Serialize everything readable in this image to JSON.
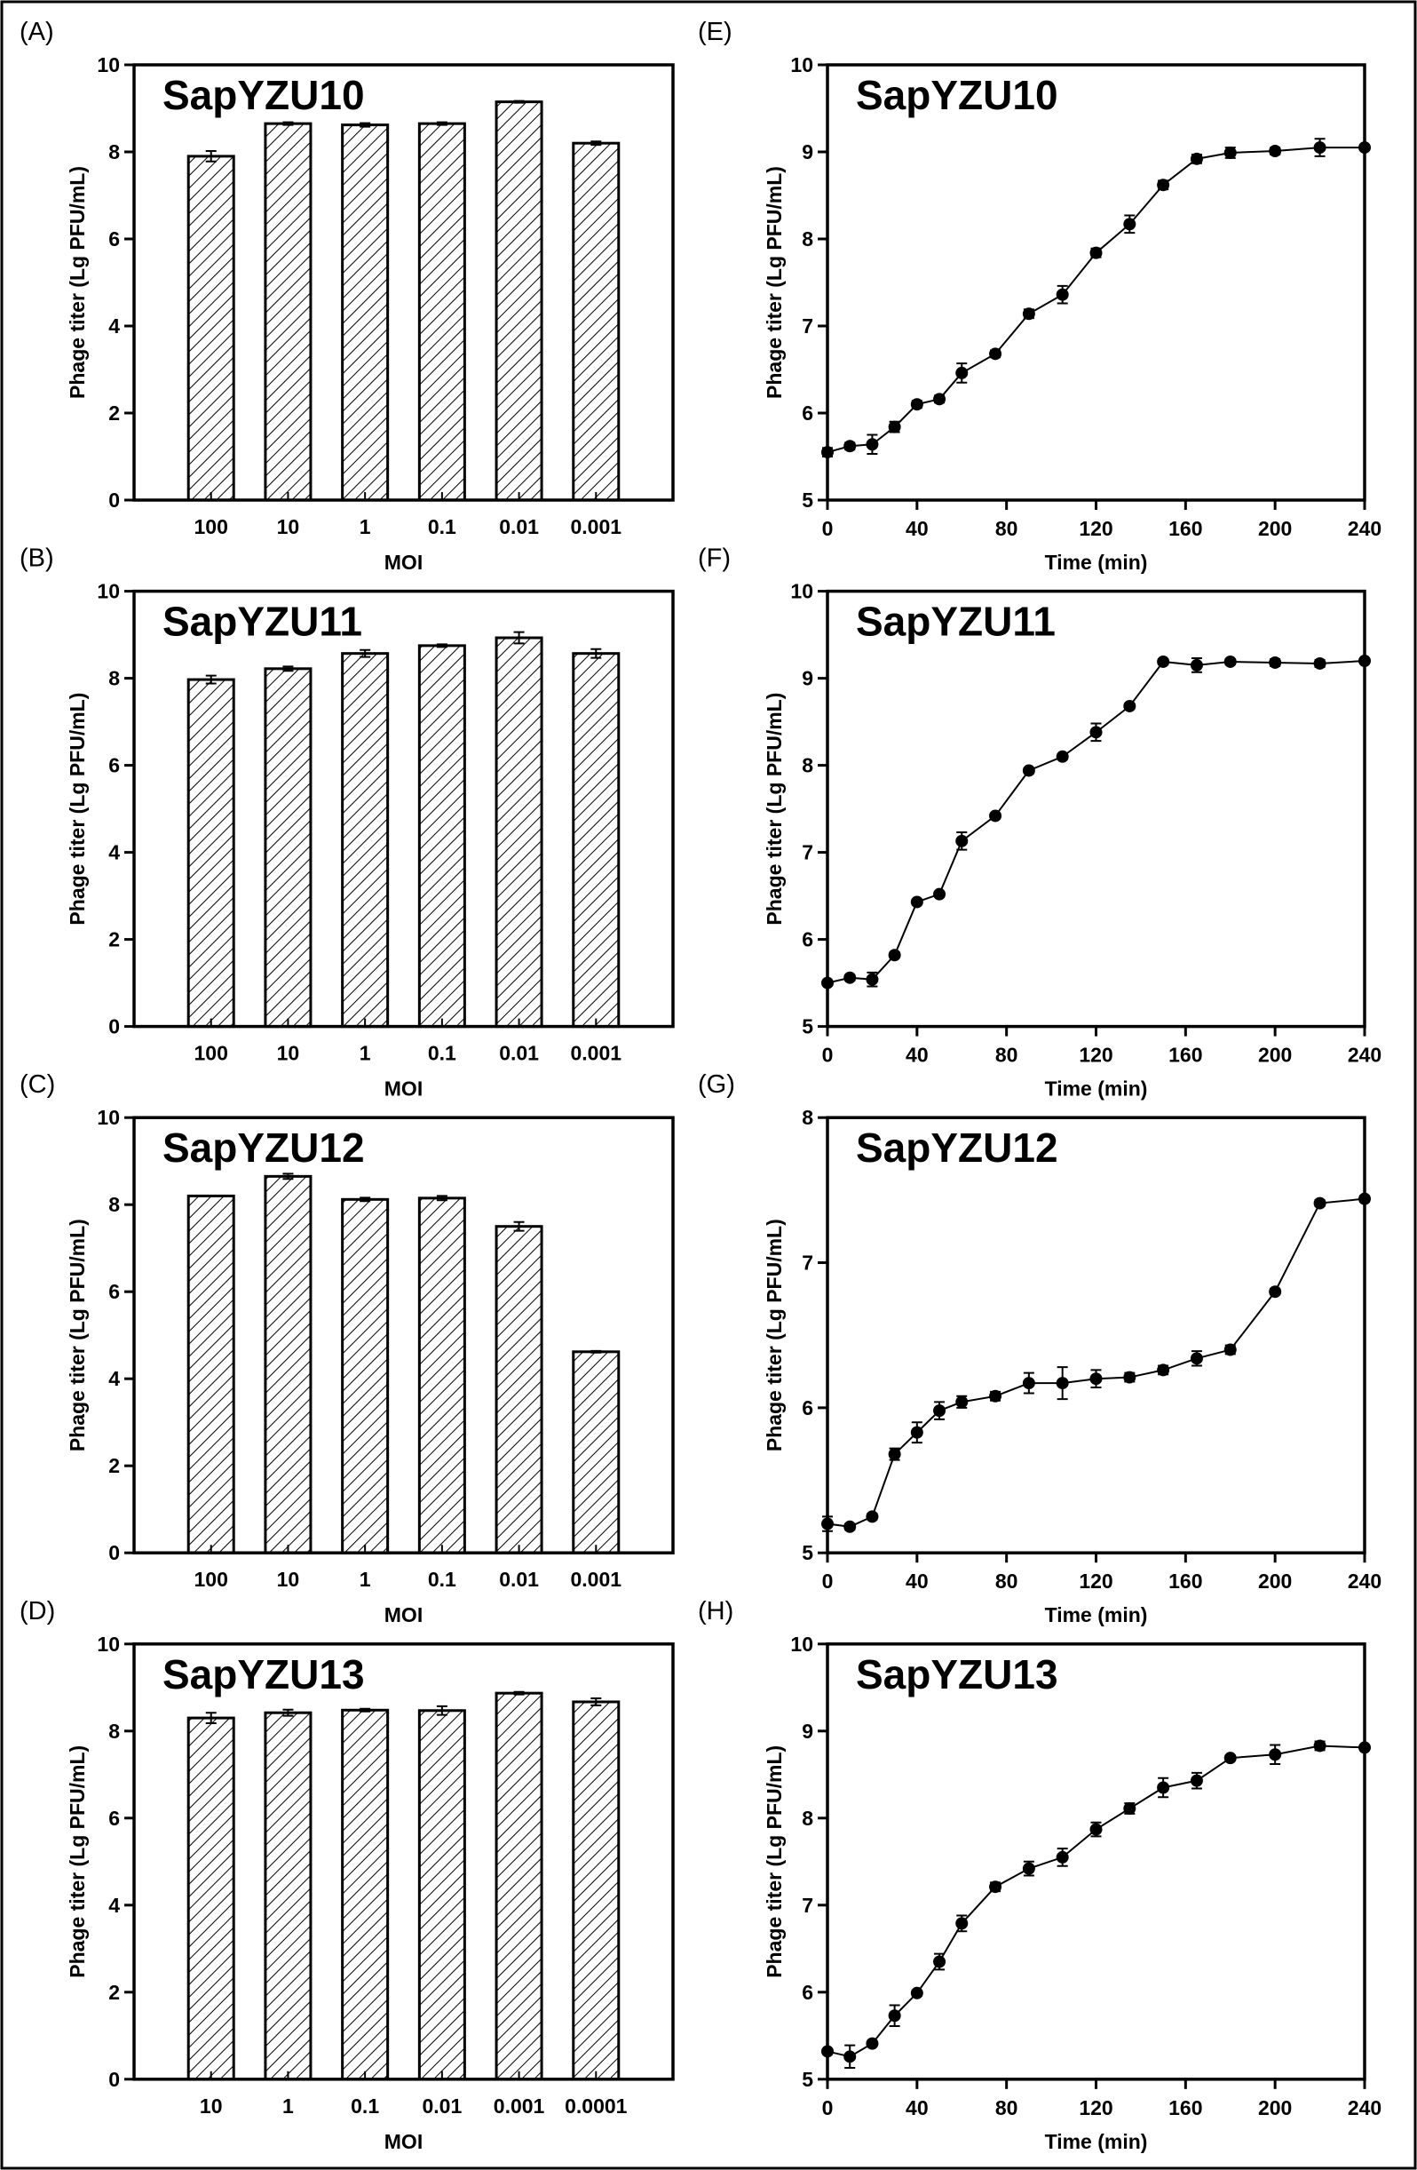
{
  "chart_data": [
    {
      "panel": "(A)",
      "type": "bar",
      "title": "SapYZU10",
      "xlabel": "MOI",
      "ylabel": "Phage titer (Lg PFU/mL)",
      "ylim": [
        0,
        10
      ],
      "yticks": [
        "0",
        "2",
        "4",
        "6",
        "8",
        "10"
      ],
      "categories": [
        "100",
        "10",
        "1",
        "0.1",
        "0.01",
        "0.001"
      ],
      "values": [
        7.9,
        8.65,
        8.62,
        8.65,
        9.15,
        8.2
      ],
      "errors": [
        0.12,
        0.03,
        0.04,
        0.03,
        0.02,
        0.04
      ],
      "pattern": "diagonal-hatch"
    },
    {
      "panel": "(B)",
      "type": "bar",
      "title": "SapYZU11",
      "xlabel": "MOI",
      "ylabel": "Phage titer (Lg PFU/mL)",
      "ylim": [
        0,
        10
      ],
      "yticks": [
        "0",
        "2",
        "4",
        "6",
        "8",
        "10"
      ],
      "categories": [
        "100",
        "10",
        "1",
        "0.1",
        "0.01",
        "0.001"
      ],
      "values": [
        7.97,
        8.22,
        8.57,
        8.75,
        8.93,
        8.57
      ],
      "errors": [
        0.09,
        0.05,
        0.08,
        0.03,
        0.13,
        0.1
      ],
      "pattern": "diagonal-hatch"
    },
    {
      "panel": "(C)",
      "type": "bar",
      "title": "SapYZU12",
      "xlabel": "MOI",
      "ylabel": "Phage titer (Lg PFU/mL)",
      "ylim": [
        0,
        10
      ],
      "yticks": [
        "0",
        "2",
        "4",
        "6",
        "8",
        "10"
      ],
      "categories": [
        "100",
        "10",
        "1",
        "0.1",
        "0.01",
        "0.001"
      ],
      "values": [
        8.2,
        8.65,
        8.12,
        8.15,
        7.5,
        4.62
      ],
      "errors": [
        0,
        0.06,
        0.04,
        0.05,
        0.1,
        0.02
      ],
      "pattern": "diagonal-hatch"
    },
    {
      "panel": "(D)",
      "type": "bar",
      "title": "SapYZU13",
      "xlabel": "MOI",
      "ylabel": "Phage titer (Lg PFU/mL)",
      "ylim": [
        0,
        10
      ],
      "yticks": [
        "0",
        "2",
        "4",
        "6",
        "8",
        "10"
      ],
      "categories": [
        "10",
        "1",
        "0.1",
        "0.01",
        "0.001",
        "0.0001"
      ],
      "values": [
        8.3,
        8.42,
        8.48,
        8.47,
        8.87,
        8.67
      ],
      "errors": [
        0.12,
        0.07,
        0.03,
        0.1,
        0.03,
        0.08
      ],
      "pattern": "diagonal-hatch"
    },
    {
      "panel": "(E)",
      "type": "line",
      "title": "SapYZU10",
      "xlabel": "Time (min)",
      "ylabel": "Phage titer (Lg PFU/mL)",
      "xlim": [
        0,
        240
      ],
      "ylim": [
        5,
        10
      ],
      "xticks": [
        "0",
        "40",
        "80",
        "120",
        "160",
        "200",
        "240"
      ],
      "yticks": [
        "5",
        "6",
        "7",
        "8",
        "9",
        "10"
      ],
      "x": [
        0,
        10,
        20,
        30,
        40,
        50,
        60,
        75,
        90,
        105,
        120,
        135,
        150,
        165,
        180,
        200,
        220,
        240
      ],
      "y": [
        5.55,
        5.62,
        5.64,
        5.84,
        6.1,
        6.16,
        6.46,
        6.68,
        7.14,
        7.36,
        7.84,
        8.17,
        8.62,
        8.92,
        8.99,
        9.01,
        9.05,
        9.05
      ],
      "errors": [
        0.05,
        0.04,
        0.11,
        0.06,
        0.04,
        0.04,
        0.11,
        0.04,
        0.05,
        0.1,
        0.05,
        0.1,
        0.05,
        0.05,
        0.06,
        0.04,
        0.1,
        0.03
      ]
    },
    {
      "panel": "(F)",
      "type": "line",
      "title": "SapYZU11",
      "xlabel": "Time (min)",
      "ylabel": "Phage titer (Lg PFU/mL)",
      "xlim": [
        0,
        240
      ],
      "ylim": [
        5,
        10
      ],
      "xticks": [
        "0",
        "40",
        "80",
        "120",
        "160",
        "200",
        "240"
      ],
      "yticks": [
        "5",
        "6",
        "7",
        "8",
        "9",
        "10"
      ],
      "x": [
        0,
        10,
        20,
        30,
        40,
        50,
        60,
        75,
        90,
        105,
        120,
        135,
        150,
        165,
        180,
        200,
        220,
        240
      ],
      "y": [
        5.5,
        5.56,
        5.54,
        5.82,
        6.43,
        6.52,
        7.13,
        7.42,
        7.94,
        8.1,
        8.38,
        8.68,
        9.19,
        9.15,
        9.19,
        9.18,
        9.17,
        9.2
      ],
      "errors": [
        0.03,
        0.03,
        0.08,
        0.03,
        0.03,
        0.03,
        0.1,
        0.03,
        0.03,
        0.03,
        0.1,
        0.03,
        0.03,
        0.08,
        0.03,
        0.04,
        0.04,
        0.03
      ]
    },
    {
      "panel": "(G)",
      "type": "line",
      "title": "SapYZU12",
      "xlabel": "Time (min)",
      "ylabel": "Phage titer (Lg PFU/mL)",
      "xlim": [
        0,
        240
      ],
      "ylim": [
        5,
        8
      ],
      "xticks": [
        "0",
        "40",
        "80",
        "120",
        "160",
        "200",
        "240"
      ],
      "yticks": [
        "5",
        "6",
        "7",
        "8"
      ],
      "x": [
        0,
        10,
        20,
        30,
        40,
        50,
        60,
        75,
        90,
        105,
        120,
        135,
        150,
        165,
        180,
        200,
        220,
        240
      ],
      "y": [
        5.2,
        5.18,
        5.25,
        5.68,
        5.83,
        5.98,
        6.04,
        6.08,
        6.17,
        6.17,
        6.2,
        6.21,
        6.26,
        6.34,
        6.4,
        6.8,
        7.41,
        7.44
      ],
      "errors": [
        0.05,
        0.02,
        0.02,
        0.04,
        0.07,
        0.06,
        0.04,
        0.03,
        0.07,
        0.11,
        0.06,
        0.03,
        0.03,
        0.05,
        0.03,
        0.02,
        0.02,
        0.02
      ]
    },
    {
      "panel": "(H)",
      "type": "line",
      "title": "SapYZU13",
      "xlabel": "Time (min)",
      "ylabel": "Phage titer (Lg PFU/mL)",
      "xlim": [
        0,
        240
      ],
      "ylim": [
        5,
        10
      ],
      "xticks": [
        "0",
        "40",
        "80",
        "120",
        "160",
        "200",
        "240"
      ],
      "yticks": [
        "5",
        "6",
        "7",
        "8",
        "9",
        "10"
      ],
      "x": [
        0,
        10,
        20,
        30,
        40,
        50,
        60,
        75,
        90,
        105,
        120,
        135,
        150,
        165,
        180,
        200,
        220,
        240
      ],
      "y": [
        5.32,
        5.26,
        5.41,
        5.73,
        5.99,
        6.35,
        6.79,
        7.21,
        7.42,
        7.55,
        7.87,
        8.11,
        8.35,
        8.43,
        8.69,
        8.73,
        8.83,
        8.81
      ],
      "errors": [
        0.03,
        0.13,
        0.03,
        0.12,
        0.03,
        0.09,
        0.09,
        0.05,
        0.08,
        0.1,
        0.08,
        0.06,
        0.11,
        0.09,
        0.03,
        0.11,
        0.05,
        0.03
      ]
    }
  ]
}
